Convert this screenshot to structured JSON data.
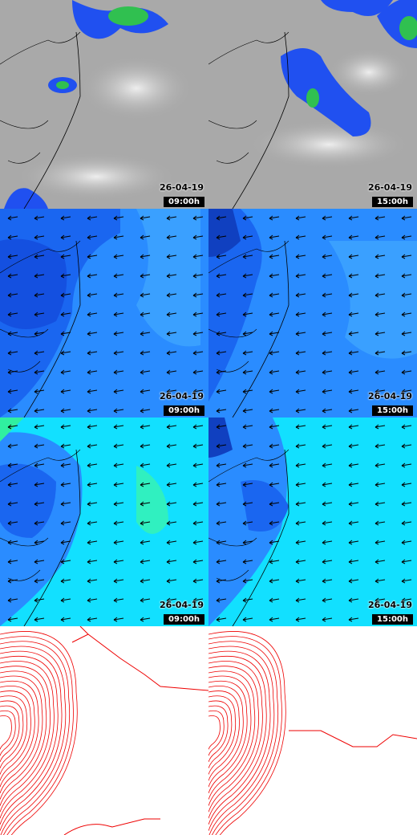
{
  "panels": [
    {
      "date": "26-04-19",
      "time": "09:00h"
    },
    {
      "date": "26-04-19",
      "time": "15:00h"
    },
    {
      "date": "26-04-19",
      "time": "09:00h"
    },
    {
      "date": "26-04-19",
      "time": "15:00h"
    },
    {
      "date": "26-04-19",
      "time": "09:00h"
    },
    {
      "date": "26-04-19",
      "time": "15:00h"
    }
  ]
}
